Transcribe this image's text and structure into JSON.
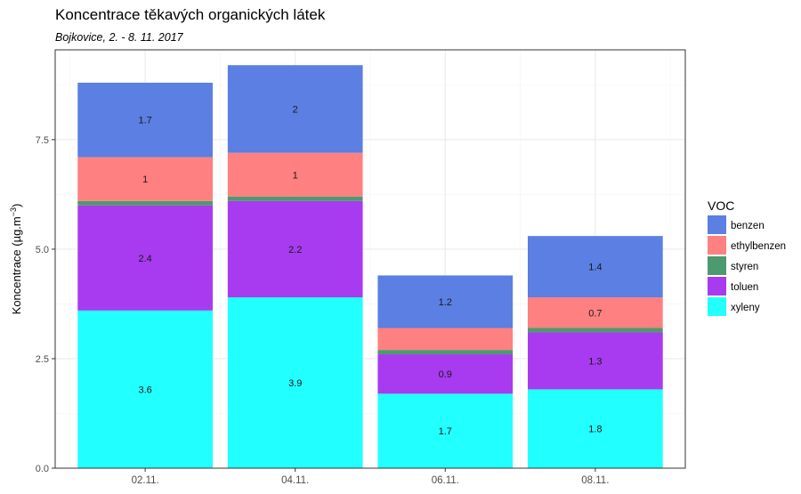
{
  "chart_data": {
    "type": "bar",
    "stacked": true,
    "title": "Koncentrace těkavých organických látek",
    "subtitle": "Bojkovice, 2. - 8. 11. 2017",
    "xlabel": "",
    "ylabel": "Koncentrace  (µg.m",
    "ylabel_sup": "−3",
    "ylabel_close": ")",
    "ylim": [
      0,
      9.55
    ],
    "yticks": [
      0,
      2.5,
      5,
      7.5
    ],
    "ytick_labels": [
      "0.0",
      "2.5",
      "5.0",
      "7.5"
    ],
    "grid": true,
    "legend_position": "right",
    "categories": [
      "02.11.",
      "04.11.",
      "06.11.",
      "08.11."
    ],
    "series": [
      {
        "name": "xyleny",
        "values": [
          3.6,
          3.9,
          1.7,
          1.8
        ],
        "labels": [
          "3.6",
          "3.9",
          "1.7",
          "1.8"
        ],
        "color": "#22FFFF"
      },
      {
        "name": "toluen",
        "values": [
          2.4,
          2.2,
          0.9,
          1.3
        ],
        "labels": [
          "2.4",
          "2.2",
          "0.9",
          "1.3"
        ],
        "color": "#A83BF0"
      },
      {
        "name": "styren",
        "values": [
          0.1,
          0.1,
          0.1,
          0.1
        ],
        "labels": [
          "",
          "",
          "",
          ""
        ],
        "color": "#4C9A6E"
      },
      {
        "name": "ethylbenzen",
        "values": [
          1.0,
          1.0,
          0.5,
          0.7
        ],
        "labels": [
          "1",
          "1",
          "",
          "0.7"
        ],
        "color": "#FF8080"
      },
      {
        "name": "benzen",
        "values": [
          1.7,
          2.0,
          1.2,
          1.4
        ],
        "labels": [
          "1.7",
          "2",
          "1.2",
          "1.4"
        ],
        "color": "#5B7FE2"
      }
    ],
    "legend": {
      "title": "VOC",
      "order": [
        "benzen",
        "ethylbenzen",
        "styren",
        "toluen",
        "xyleny"
      ]
    }
  }
}
